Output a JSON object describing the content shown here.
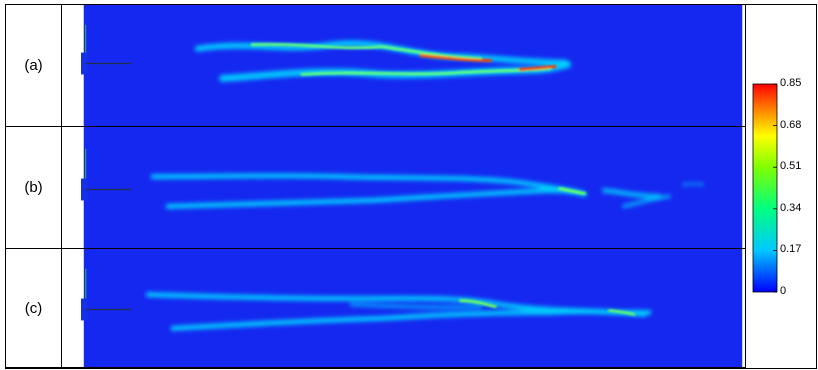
{
  "panels": [
    {
      "label": "(a)"
    },
    {
      "label": "(b)"
    },
    {
      "label": "(c)"
    }
  ],
  "colorbar": {
    "ticks": [
      "0.85",
      "0.68",
      "0.51",
      "0.34",
      "0.17",
      "0"
    ],
    "min": 0,
    "max": 0.85,
    "colors": [
      "#0000ff",
      "#00c8ff",
      "#00ff80",
      "#80ff00",
      "#ffff00",
      "#ff8000",
      "#ff0000"
    ]
  },
  "colors": {
    "background_field": "#1428f0",
    "low": "#00c8ff",
    "mid": "#50ff80",
    "high": "#ff2000"
  }
}
